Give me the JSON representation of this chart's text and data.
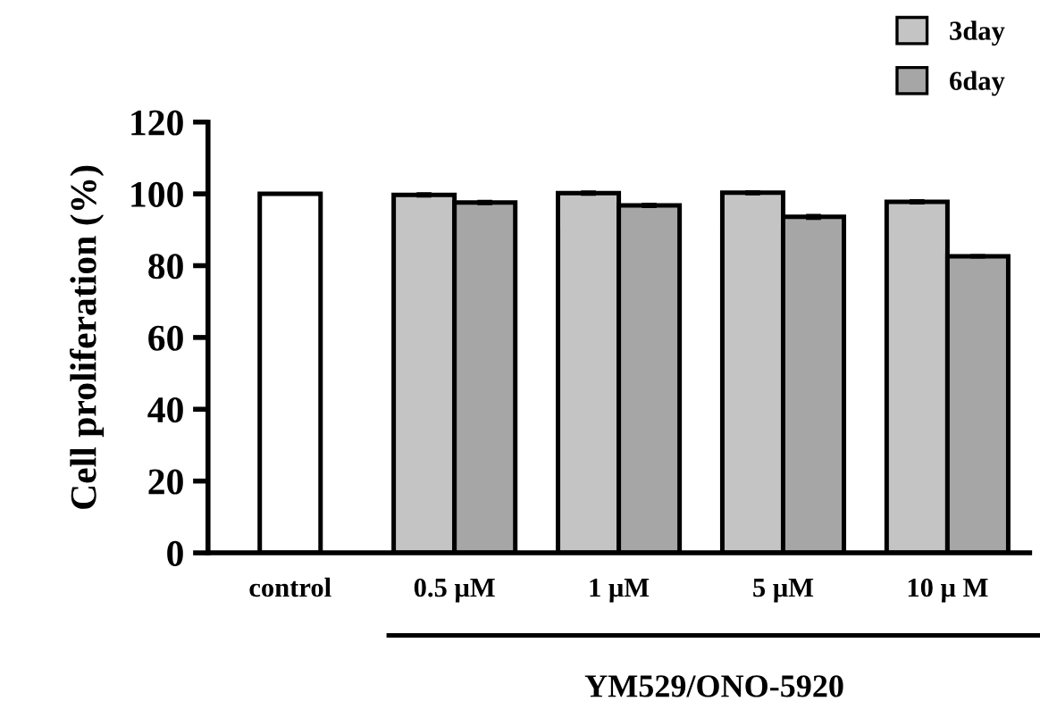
{
  "chart_data": {
    "type": "bar",
    "ylabel": "Cell proliferation (%)",
    "xlabel": "YM529/ONO-5920",
    "categories": [
      "control",
      "0.5 μM",
      "1 μM",
      "5 μM",
      "10 μ M"
    ],
    "series": [
      {
        "color": "#ffffff",
        "values": [
          100,
          null,
          null,
          null,
          null
        ]
      },
      {
        "name": "3day",
        "color": "#c4c4c4",
        "values": [
          null,
          99.7,
          100.2,
          100.3,
          97.8
        ],
        "errors": [
          null,
          0.4,
          0.4,
          0.4,
          0.4
        ]
      },
      {
        "name": "6day",
        "color": "#a6a6a6",
        "values": [
          null,
          97.6,
          96.8,
          93.6,
          82.6
        ],
        "errors": [
          null,
          0.4,
          0.4,
          0.5,
          0.3
        ]
      }
    ],
    "ylim": [
      0,
      120
    ],
    "yticks": [
      0,
      20,
      40,
      60,
      80,
      100,
      120
    ],
    "legend": "top right",
    "grid": false
  }
}
